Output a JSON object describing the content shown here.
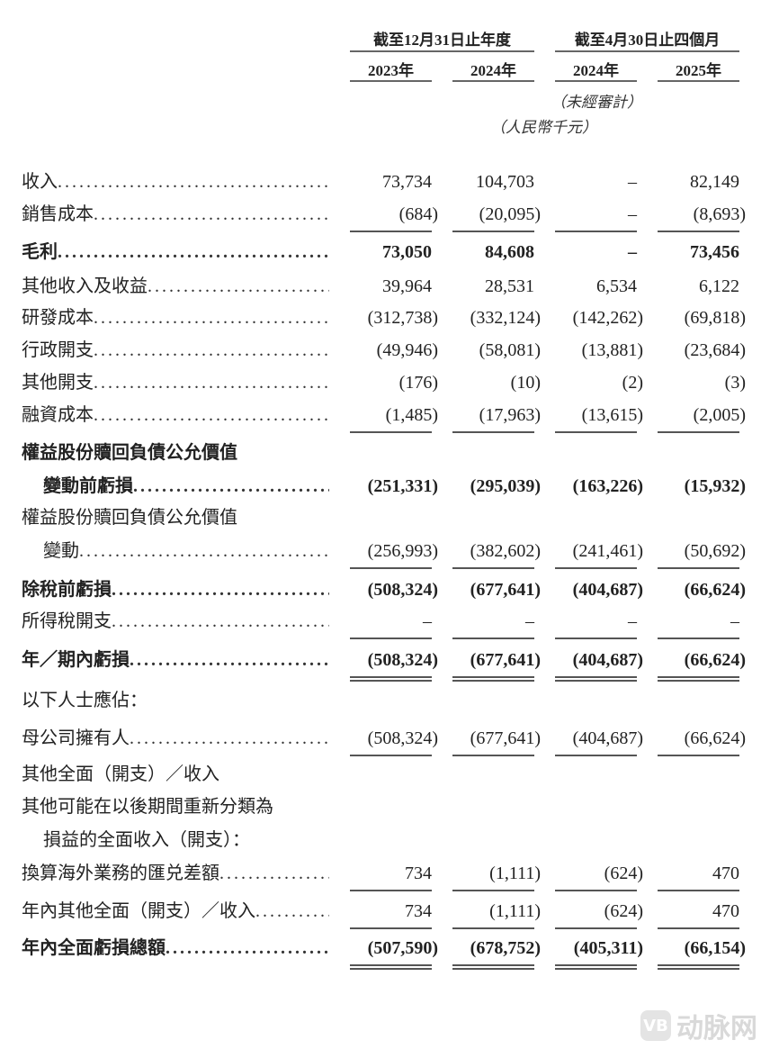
{
  "header": {
    "group1": "截至12月31日止年度",
    "group2": "截至4月30日止四個月",
    "years": [
      "2023年",
      "2024年",
      "2024年",
      "2025年"
    ],
    "unaudited": "（未經審計）",
    "unit": "（人民幣千元）"
  },
  "rows": [
    {
      "label": "收入",
      "values": [
        "73,734",
        "104,703",
        "–",
        "82,149"
      ]
    },
    {
      "label": "銷售成本",
      "values": [
        "(684)",
        "(20,095)",
        "–",
        "(8,693)"
      ],
      "underline": "single"
    },
    {
      "label": "毛利",
      "values": [
        "73,050",
        "84,608",
        "–",
        "73,456"
      ],
      "bold": true
    },
    {
      "label": "其他收入及收益",
      "values": [
        "39,964",
        "28,531",
        "6,534",
        "6,122"
      ]
    },
    {
      "label": "研發成本",
      "values": [
        "(312,738)",
        "(332,124)",
        "(142,262)",
        "(69,818)"
      ]
    },
    {
      "label": "行政開支",
      "values": [
        "(49,946)",
        "(58,081)",
        "(13,881)",
        "(23,684)"
      ]
    },
    {
      "label": "其他開支",
      "values": [
        "(176)",
        "(10)",
        "(2)",
        "(3)"
      ]
    },
    {
      "label": "融資成本",
      "values": [
        "(1,485)",
        "(17,963)",
        "(13,615)",
        "(2,005)"
      ],
      "underline": "single"
    },
    {
      "label": "權益股份贖回負債公允價值",
      "values": [],
      "bold": true
    },
    {
      "label": "變動前虧損",
      "values": [
        "(251,331)",
        "(295,039)",
        "(163,226)",
        "(15,932)"
      ],
      "bold": true,
      "indent": true
    },
    {
      "label": "權益股份贖回負債公允價值",
      "values": []
    },
    {
      "label": "變動",
      "values": [
        "(256,993)",
        "(382,602)",
        "(241,461)",
        "(50,692)"
      ],
      "indent": true,
      "underline": "single"
    },
    {
      "label": "除稅前虧損",
      "values": [
        "(508,324)",
        "(677,641)",
        "(404,687)",
        "(66,624)"
      ],
      "bold": true
    },
    {
      "label": "所得稅開支",
      "values": [
        "–",
        "–",
        "–",
        "–"
      ],
      "underline": "single"
    },
    {
      "label": "年／期內虧損",
      "values": [
        "(508,324)",
        "(677,641)",
        "(404,687)",
        "(66,624)"
      ],
      "bold": true,
      "underline": "double"
    },
    {
      "label": "以下人士應佔：",
      "values": []
    },
    {
      "label": "母公司擁有人",
      "values": [
        "(508,324)",
        "(677,641)",
        "(404,687)",
        "(66,624)"
      ],
      "underline": "single"
    },
    {
      "label": "其他全面（開支）／收入",
      "values": []
    },
    {
      "label": "其他可能在以後期間重新分類為",
      "values": []
    },
    {
      "label": "損益的全面收入（開支）：",
      "values": [],
      "indent": true
    },
    {
      "label": "換算海外業務的匯兑差額",
      "values": [
        "734",
        "(1,111)",
        "(624)",
        "470"
      ],
      "underline": "single"
    },
    {
      "label": "年內其他全面（開支）／收入",
      "values": [
        "734",
        "(1,111)",
        "(624)",
        "470"
      ],
      "underline": "single"
    },
    {
      "label": "年內全面虧損總額",
      "values": [
        "(507,590)",
        "(678,752)",
        "(405,311)",
        "(66,154)"
      ],
      "bold": true,
      "underline": "double"
    }
  ],
  "watermark": {
    "logo": "VB",
    "text": "动脉网"
  }
}
